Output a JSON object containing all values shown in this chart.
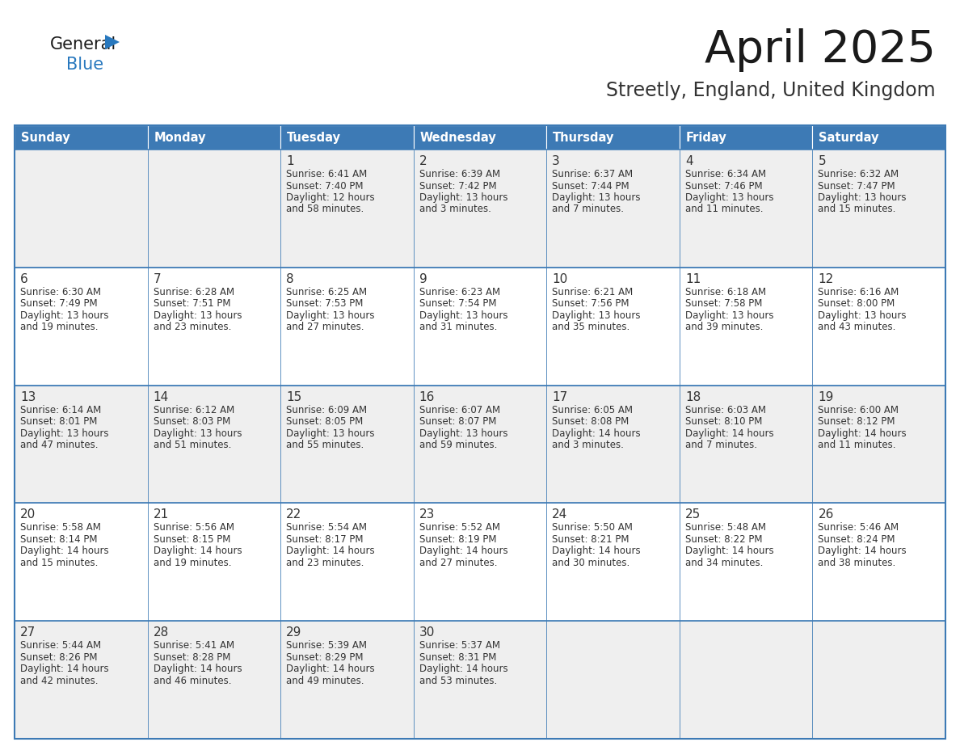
{
  "title": "April 2025",
  "subtitle": "Streetly, England, United Kingdom",
  "header_color": "#3d7ab5",
  "header_text_color": "#ffffff",
  "row_odd_bg": "#efefef",
  "row_even_bg": "#ffffff",
  "border_color": "#3d7ab5",
  "day_headers": [
    "Sunday",
    "Monday",
    "Tuesday",
    "Wednesday",
    "Thursday",
    "Friday",
    "Saturday"
  ],
  "title_color": "#1a1a1a",
  "subtitle_color": "#333333",
  "cell_text_color": "#333333",
  "logo_general_color": "#1a1a1a",
  "logo_blue_color": "#2878be",
  "weeks": [
    [
      {
        "day": "",
        "sunrise": "",
        "sunset": "",
        "daylight": ""
      },
      {
        "day": "",
        "sunrise": "",
        "sunset": "",
        "daylight": ""
      },
      {
        "day": "1",
        "sunrise": "6:41 AM",
        "sunset": "7:40 PM",
        "daylight": "12 hours\nand 58 minutes."
      },
      {
        "day": "2",
        "sunrise": "6:39 AM",
        "sunset": "7:42 PM",
        "daylight": "13 hours\nand 3 minutes."
      },
      {
        "day": "3",
        "sunrise": "6:37 AM",
        "sunset": "7:44 PM",
        "daylight": "13 hours\nand 7 minutes."
      },
      {
        "day": "4",
        "sunrise": "6:34 AM",
        "sunset": "7:46 PM",
        "daylight": "13 hours\nand 11 minutes."
      },
      {
        "day": "5",
        "sunrise": "6:32 AM",
        "sunset": "7:47 PM",
        "daylight": "13 hours\nand 15 minutes."
      }
    ],
    [
      {
        "day": "6",
        "sunrise": "6:30 AM",
        "sunset": "7:49 PM",
        "daylight": "13 hours\nand 19 minutes."
      },
      {
        "day": "7",
        "sunrise": "6:28 AM",
        "sunset": "7:51 PM",
        "daylight": "13 hours\nand 23 minutes."
      },
      {
        "day": "8",
        "sunrise": "6:25 AM",
        "sunset": "7:53 PM",
        "daylight": "13 hours\nand 27 minutes."
      },
      {
        "day": "9",
        "sunrise": "6:23 AM",
        "sunset": "7:54 PM",
        "daylight": "13 hours\nand 31 minutes."
      },
      {
        "day": "10",
        "sunrise": "6:21 AM",
        "sunset": "7:56 PM",
        "daylight": "13 hours\nand 35 minutes."
      },
      {
        "day": "11",
        "sunrise": "6:18 AM",
        "sunset": "7:58 PM",
        "daylight": "13 hours\nand 39 minutes."
      },
      {
        "day": "12",
        "sunrise": "6:16 AM",
        "sunset": "8:00 PM",
        "daylight": "13 hours\nand 43 minutes."
      }
    ],
    [
      {
        "day": "13",
        "sunrise": "6:14 AM",
        "sunset": "8:01 PM",
        "daylight": "13 hours\nand 47 minutes."
      },
      {
        "day": "14",
        "sunrise": "6:12 AM",
        "sunset": "8:03 PM",
        "daylight": "13 hours\nand 51 minutes."
      },
      {
        "day": "15",
        "sunrise": "6:09 AM",
        "sunset": "8:05 PM",
        "daylight": "13 hours\nand 55 minutes."
      },
      {
        "day": "16",
        "sunrise": "6:07 AM",
        "sunset": "8:07 PM",
        "daylight": "13 hours\nand 59 minutes."
      },
      {
        "day": "17",
        "sunrise": "6:05 AM",
        "sunset": "8:08 PM",
        "daylight": "14 hours\nand 3 minutes."
      },
      {
        "day": "18",
        "sunrise": "6:03 AM",
        "sunset": "8:10 PM",
        "daylight": "14 hours\nand 7 minutes."
      },
      {
        "day": "19",
        "sunrise": "6:00 AM",
        "sunset": "8:12 PM",
        "daylight": "14 hours\nand 11 minutes."
      }
    ],
    [
      {
        "day": "20",
        "sunrise": "5:58 AM",
        "sunset": "8:14 PM",
        "daylight": "14 hours\nand 15 minutes."
      },
      {
        "day": "21",
        "sunrise": "5:56 AM",
        "sunset": "8:15 PM",
        "daylight": "14 hours\nand 19 minutes."
      },
      {
        "day": "22",
        "sunrise": "5:54 AM",
        "sunset": "8:17 PM",
        "daylight": "14 hours\nand 23 minutes."
      },
      {
        "day": "23",
        "sunrise": "5:52 AM",
        "sunset": "8:19 PM",
        "daylight": "14 hours\nand 27 minutes."
      },
      {
        "day": "24",
        "sunrise": "5:50 AM",
        "sunset": "8:21 PM",
        "daylight": "14 hours\nand 30 minutes."
      },
      {
        "day": "25",
        "sunrise": "5:48 AM",
        "sunset": "8:22 PM",
        "daylight": "14 hours\nand 34 minutes."
      },
      {
        "day": "26",
        "sunrise": "5:46 AM",
        "sunset": "8:24 PM",
        "daylight": "14 hours\nand 38 minutes."
      }
    ],
    [
      {
        "day": "27",
        "sunrise": "5:44 AM",
        "sunset": "8:26 PM",
        "daylight": "14 hours\nand 42 minutes."
      },
      {
        "day": "28",
        "sunrise": "5:41 AM",
        "sunset": "8:28 PM",
        "daylight": "14 hours\nand 46 minutes."
      },
      {
        "day": "29",
        "sunrise": "5:39 AM",
        "sunset": "8:29 PM",
        "daylight": "14 hours\nand 49 minutes."
      },
      {
        "day": "30",
        "sunrise": "5:37 AM",
        "sunset": "8:31 PM",
        "daylight": "14 hours\nand 53 minutes."
      },
      {
        "day": "",
        "sunrise": "",
        "sunset": "",
        "daylight": ""
      },
      {
        "day": "",
        "sunrise": "",
        "sunset": "",
        "daylight": ""
      },
      {
        "day": "",
        "sunrise": "",
        "sunset": "",
        "daylight": ""
      }
    ]
  ]
}
